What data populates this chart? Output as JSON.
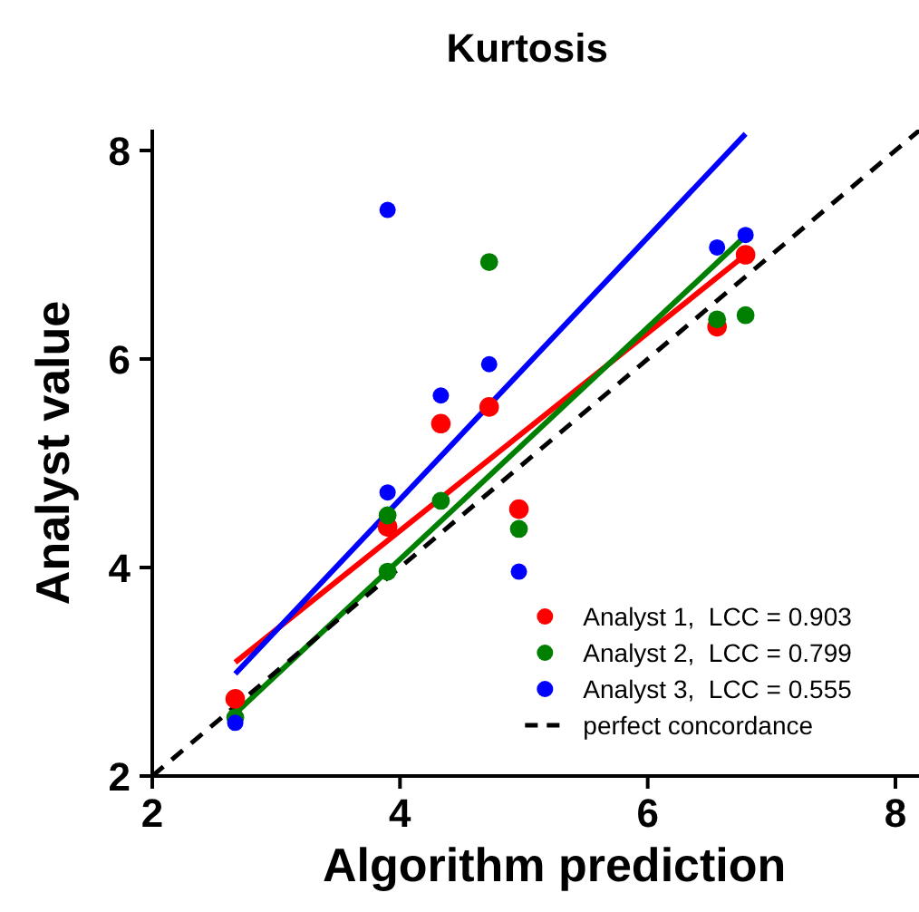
{
  "chart_data": {
    "type": "scatter",
    "title": "Kurtosis",
    "xlabel": "Algorithm prediction",
    "ylabel": "Analyst value",
    "xlim": [
      2,
      8.2
    ],
    "ylim": [
      2,
      8.2
    ],
    "xticks": [
      2,
      4,
      6,
      8
    ],
    "yticks": [
      2,
      4,
      6,
      8
    ],
    "grid": false,
    "legend": "bottom right",
    "series": [
      {
        "name": "Analyst 1,  LCC = 0.903",
        "color": "#ff0000",
        "marker": "circle",
        "x": [
          2.67,
          3.9,
          4.33,
          4.72,
          4.96,
          6.56,
          6.79
        ],
        "values": [
          2.74,
          4.39,
          5.38,
          5.54,
          4.56,
          6.31,
          7.0
        ]
      },
      {
        "name": "Analyst 2,  LCC = 0.799",
        "color": "#008000",
        "marker": "circle",
        "x": [
          2.67,
          3.9,
          3.9,
          4.33,
          4.72,
          4.96,
          6.56,
          6.79
        ],
        "values": [
          2.56,
          4.5,
          3.96,
          4.64,
          6.93,
          4.37,
          6.38,
          6.42
        ]
      },
      {
        "name": "Analyst 3,  LCC = 0.555",
        "color": "#0000ff",
        "marker": "circle",
        "x": [
          2.67,
          3.9,
          3.9,
          4.33,
          4.72,
          4.96,
          6.56,
          6.79
        ],
        "values": [
          2.51,
          7.43,
          4.72,
          5.65,
          5.95,
          3.96,
          7.07,
          7.19
        ]
      },
      {
        "color": "#ff0000",
        "type": "line",
        "marker": "none",
        "line_style": "solid",
        "x": [
          2.67,
          6.79
        ],
        "values": [
          3.09,
          7.0
        ]
      },
      {
        "color": "#008000",
        "type": "line",
        "marker": "none",
        "line_style": "solid",
        "x": [
          2.67,
          6.79
        ],
        "values": [
          2.6,
          7.18
        ]
      },
      {
        "color": "#0000ff",
        "type": "line",
        "marker": "none",
        "line_style": "solid",
        "x": [
          2.67,
          6.79
        ],
        "values": [
          2.98,
          8.16
        ]
      },
      {
        "name": "perfect concordance",
        "color": "#000000",
        "type": "line",
        "marker": "none",
        "line_style": "dashed",
        "x": [
          2,
          8.2
        ],
        "values": [
          2,
          8.2
        ]
      }
    ]
  }
}
